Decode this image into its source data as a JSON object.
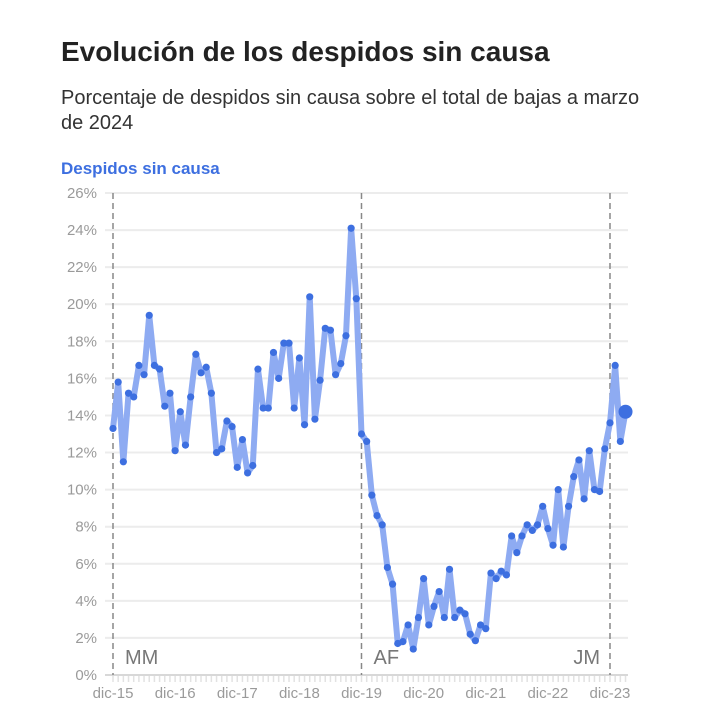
{
  "chart_data": {
    "type": "line",
    "title": "Evolución de los despidos sin causa",
    "subtitle": "Porcentaje de despidos sin causa sobre el total de bajas a marzo de 2024",
    "series_label": "Despidos sin causa",
    "xlabel": "",
    "ylabel": "",
    "ylim": [
      0,
      26
    ],
    "yticks": [
      "0%",
      "2%",
      "4%",
      "6%",
      "8%",
      "10%",
      "12%",
      "14%",
      "16%",
      "18%",
      "20%",
      "22%",
      "24%",
      "26%"
    ],
    "xticks": [
      {
        "index": 0,
        "label": "dic-15"
      },
      {
        "index": 12,
        "label": "dic-16"
      },
      {
        "index": 24,
        "label": "dic-17"
      },
      {
        "index": 36,
        "label": "dic-18"
      },
      {
        "index": 48,
        "label": "dic-19"
      },
      {
        "index": 60,
        "label": "dic-20"
      },
      {
        "index": 72,
        "label": "dic-21"
      },
      {
        "index": 84,
        "label": "dic-22"
      },
      {
        "index": 96,
        "label": "dic-23"
      }
    ],
    "annotations": [
      {
        "index": 0,
        "label": "MM"
      },
      {
        "index": 48,
        "label": "AF"
      },
      {
        "index": 96,
        "label": "JM"
      }
    ],
    "frequency": "monthly",
    "start": "dic-15",
    "end": "mar-24",
    "values": [
      13.3,
      15.8,
      11.5,
      15.2,
      15.0,
      16.7,
      16.2,
      19.4,
      16.7,
      16.5,
      14.5,
      15.2,
      12.1,
      14.2,
      12.4,
      15.0,
      17.3,
      16.3,
      16.6,
      15.2,
      12.0,
      12.2,
      13.7,
      13.4,
      11.2,
      12.7,
      10.9,
      11.3,
      16.5,
      14.4,
      14.4,
      17.4,
      16.0,
      17.9,
      17.9,
      14.4,
      17.1,
      13.5,
      20.4,
      13.8,
      15.9,
      18.7,
      18.6,
      16.2,
      16.8,
      18.3,
      24.1,
      20.3,
      13.0,
      12.6,
      9.7,
      8.6,
      8.1,
      5.8,
      4.9,
      1.7,
      1.8,
      2.7,
      1.4,
      3.1,
      5.2,
      2.7,
      3.7,
      4.5,
      3.1,
      5.7,
      3.1,
      3.5,
      3.3,
      2.2,
      1.85,
      2.7,
      2.5,
      5.5,
      5.2,
      5.6,
      5.4,
      7.5,
      6.6,
      7.5,
      8.1,
      7.8,
      8.1,
      9.1,
      7.9,
      7.0,
      10.0,
      6.9,
      9.1,
      10.7,
      11.6,
      9.5,
      12.1,
      10.0,
      9.9,
      12.2,
      13.6,
      16.7,
      12.6,
      14.2
    ],
    "grid": true,
    "colors": {
      "line": "#8eabf2",
      "point": "#3d6fe0",
      "label": "#3d6fe0"
    }
  }
}
